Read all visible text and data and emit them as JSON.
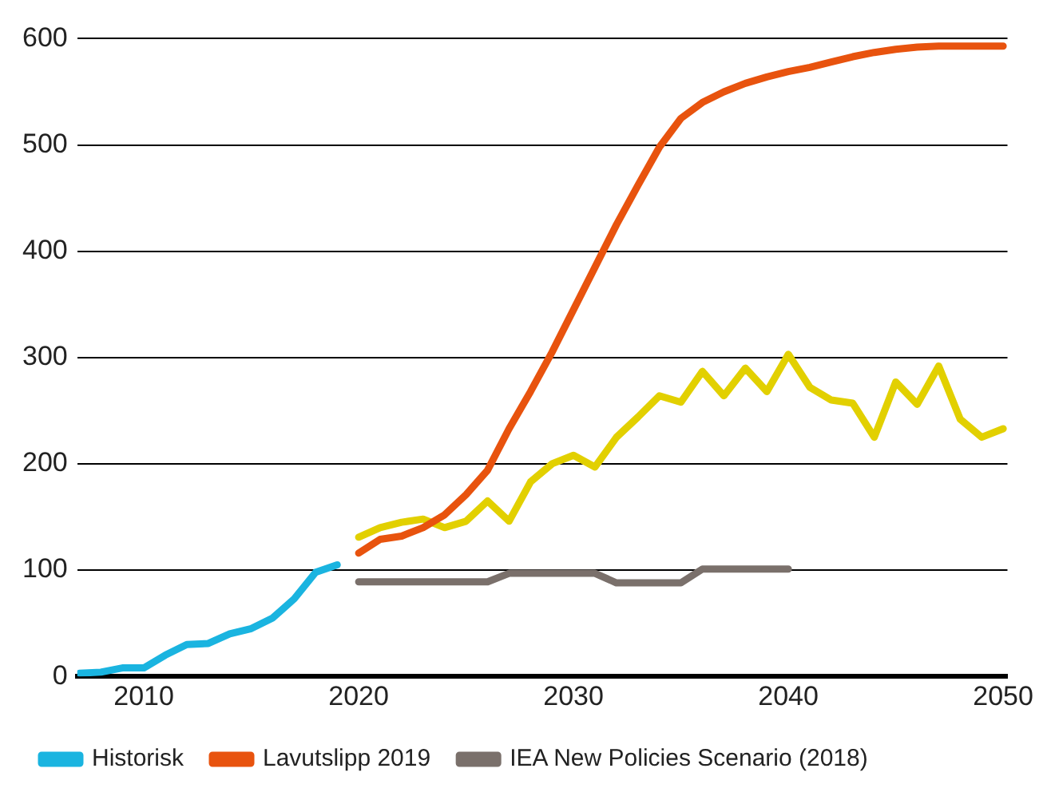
{
  "chart_data": {
    "type": "line",
    "xlim": [
      2006.9,
      2050.2
    ],
    "xticks": [
      2010,
      2020,
      2030,
      2040,
      2050
    ],
    "ylim": [
      0,
      600
    ],
    "yticks": [
      0,
      100,
      200,
      300,
      400,
      500,
      600
    ],
    "grid": "y",
    "legend": "bottom",
    "line_style": "solid",
    "marker": "none",
    "series": [
      {
        "name": "Historisk",
        "color": "#1ab4e0",
        "x": [
          2007,
          2008,
          2009,
          2010,
          2011,
          2012,
          2013,
          2014,
          2015,
          2016,
          2017,
          2018,
          2019
        ],
        "values": [
          3,
          4,
          8,
          8,
          20,
          30,
          31,
          40,
          45,
          55,
          73,
          98,
          105
        ]
      },
      {
        "name": "Lavutslipp 2019",
        "color": "#e8530e",
        "x": [
          2020,
          2021,
          2022,
          2023,
          2024,
          2025,
          2026,
          2027,
          2028,
          2029,
          2030,
          2031,
          2032,
          2033,
          2034,
          2035,
          2036,
          2037,
          2038,
          2039,
          2040,
          2041,
          2042,
          2043,
          2044,
          2045,
          2046,
          2047,
          2048,
          2049,
          2050
        ],
        "values": [
          116,
          129,
          132,
          140,
          152,
          171,
          194,
          233,
          268,
          305,
          345,
          385,
          425,
          462,
          498,
          525,
          540,
          550,
          558,
          564,
          569,
          573,
          578,
          583,
          587,
          590,
          592,
          593,
          593,
          593,
          593
        ]
      },
      {
        "name": "IEA New Policies Scenario (2018)",
        "color": "#7a706b",
        "x": [
          2020,
          2021,
          2022,
          2023,
          2024,
          2025,
          2026,
          2027,
          2028,
          2029,
          2030,
          2031,
          2032,
          2033,
          2034,
          2035,
          2036,
          2037,
          2038,
          2039,
          2040
        ],
        "values": [
          89,
          89,
          89,
          89,
          89,
          89,
          89,
          97,
          97,
          97,
          97,
          97,
          88,
          88,
          88,
          88,
          101,
          101,
          101,
          101,
          101
        ]
      },
      {
        "color": "#e2d000",
        "x": [
          2020,
          2021,
          2022,
          2023,
          2024,
          2025,
          2026,
          2027,
          2028,
          2029,
          2030,
          2031,
          2032,
          2033,
          2034,
          2035,
          2036,
          2037,
          2038,
          2039,
          2040,
          2041,
          2042,
          2043,
          2044,
          2045,
          2046,
          2047,
          2048,
          2049,
          2050
        ],
        "values": [
          131,
          140,
          145,
          148,
          140,
          146,
          165,
          146,
          183,
          200,
          208,
          197,
          225,
          244,
          264,
          258,
          287,
          264,
          290,
          268,
          303,
          272,
          260,
          257,
          225,
          277,
          256,
          292,
          242,
          225,
          233
        ]
      }
    ]
  }
}
